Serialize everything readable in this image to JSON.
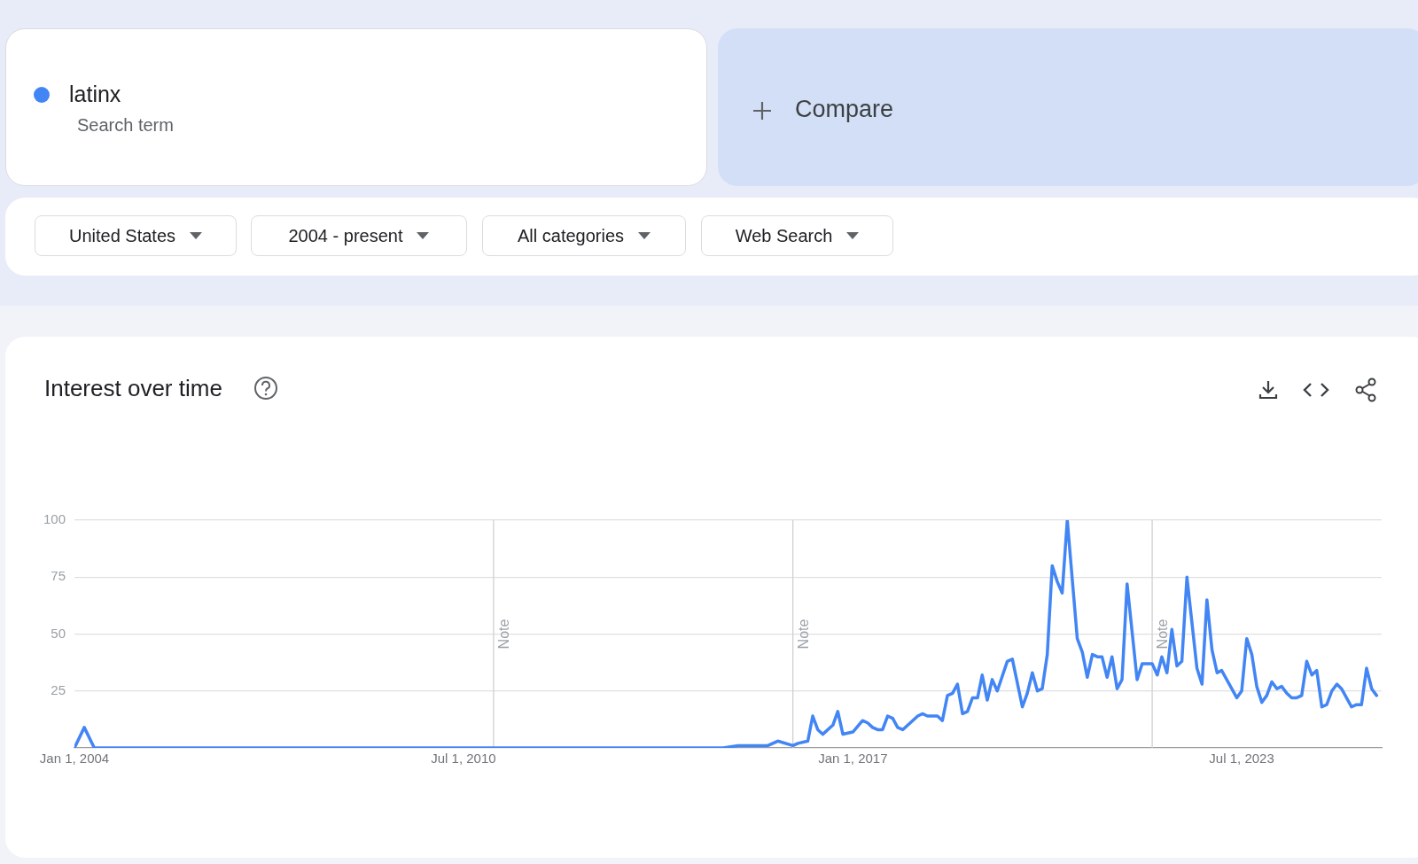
{
  "chart_data": {
    "type": "line",
    "title": "Interest over time",
    "annotations": [
      "Search term",
      "Compare",
      "United States",
      "2004 - present",
      "All categories",
      "Web Search"
    ],
    "x": [
      "2004-01",
      "2004-03",
      "2004-05",
      "2014-11",
      "2015-02",
      "2015-08",
      "2015-10",
      "2016-01",
      "2016-02",
      "2016-04",
      "2016-05",
      "2016-06",
      "2016-07",
      "2016-09",
      "2016-10",
      "2016-11",
      "2017-01",
      "2017-03",
      "2017-04",
      "2017-05",
      "2017-06",
      "2017-07",
      "2017-08",
      "2017-09",
      "2017-10",
      "2017-11",
      "2018-02",
      "2018-03",
      "2018-04",
      "2018-06",
      "2018-07",
      "2018-08",
      "2018-09",
      "2018-10",
      "2018-11",
      "2018-12",
      "2019-01",
      "2019-02",
      "2019-03",
      "2019-04",
      "2019-05",
      "2019-06",
      "2019-08",
      "2019-09",
      "2019-11",
      "2019-12",
      "2020-01",
      "2020-02",
      "2020-03",
      "2020-04",
      "2020-05",
      "2020-06",
      "2020-07",
      "2020-08",
      "2020-10",
      "2020-11",
      "2020-12",
      "2021-01",
      "2021-02",
      "2021-03",
      "2021-04",
      "2021-05",
      "2021-06",
      "2021-07",
      "2021-08",
      "2021-10",
      "2021-11",
      "2022-01",
      "2022-02",
      "2022-03",
      "2022-04",
      "2022-05",
      "2022-06",
      "2022-07",
      "2022-08",
      "2022-10",
      "2022-11",
      "2022-12",
      "2023-01",
      "2023-02",
      "2023-03",
      "2023-06",
      "2023-07",
      "2023-08",
      "2023-09",
      "2023-10",
      "2023-11",
      "2023-12",
      "2024-01",
      "2024-02",
      "2024-03",
      "2024-04",
      "2024-05",
      "2024-06",
      "2024-07",
      "2024-08",
      "2024-09",
      "2024-10",
      "2024-11",
      "2024-12",
      "2025-01",
      "2025-02",
      "2025-03",
      "2025-05",
      "2025-06",
      "2025-07",
      "2025-08",
      "2025-09",
      "2025-10"
    ],
    "series": [
      {
        "name": "latinx",
        "color": "#4285f4",
        "values": [
          0,
          9,
          0,
          0,
          1,
          1,
          3,
          1,
          2,
          3,
          14,
          8,
          6,
          10,
          16,
          6,
          7,
          12,
          11,
          9,
          8,
          8,
          14,
          13,
          9,
          8,
          14,
          15,
          14,
          14,
          12,
          23,
          24,
          28,
          15,
          16,
          22,
          22,
          32,
          21,
          30,
          25,
          38,
          39,
          18,
          24,
          33,
          25,
          26,
          41,
          80,
          73,
          68,
          100,
          48,
          42,
          31,
          41,
          40,
          40,
          31,
          40,
          26,
          30,
          72,
          30,
          37,
          37,
          32,
          40,
          33,
          52,
          36,
          38,
          75,
          35,
          28,
          65,
          43,
          33,
          34,
          22,
          25,
          48,
          41,
          27,
          20,
          23,
          29,
          26,
          27,
          24,
          22,
          22,
          23,
          38,
          32,
          34,
          18,
          19,
          25,
          28,
          26,
          18,
          19,
          19,
          35,
          26,
          23
        ]
      }
    ],
    "xlim": [
      "2004-01-01",
      "2025-11-01"
    ],
    "xticks": [
      {
        "value": "2004-01-01",
        "label": "Jan 1, 2004"
      },
      {
        "value": "2010-07-01",
        "label": "Jul 1, 2010"
      },
      {
        "value": "2017-01-01",
        "label": "Jan 1, 2017"
      },
      {
        "value": "2023-07-01",
        "label": "Jul 1, 2023"
      }
    ],
    "ylim": [
      0,
      100
    ],
    "yticks": [
      {
        "value": 0,
        "label": null
      },
      25,
      50,
      75,
      100
    ],
    "ref_lines": [
      {
        "axis": "x",
        "value": "2011-01-01",
        "label": "Note",
        "color": "#d0d0d0"
      },
      {
        "axis": "x",
        "value": "2016-01-01",
        "label": "Note",
        "color": "#d0d0d0"
      },
      {
        "axis": "x",
        "value": "2022-01-01",
        "label": "Note",
        "color": "#d0d0d0"
      }
    ],
    "grid": "y",
    "legend": "top left",
    "marker": "none",
    "line_style": "solid"
  }
}
